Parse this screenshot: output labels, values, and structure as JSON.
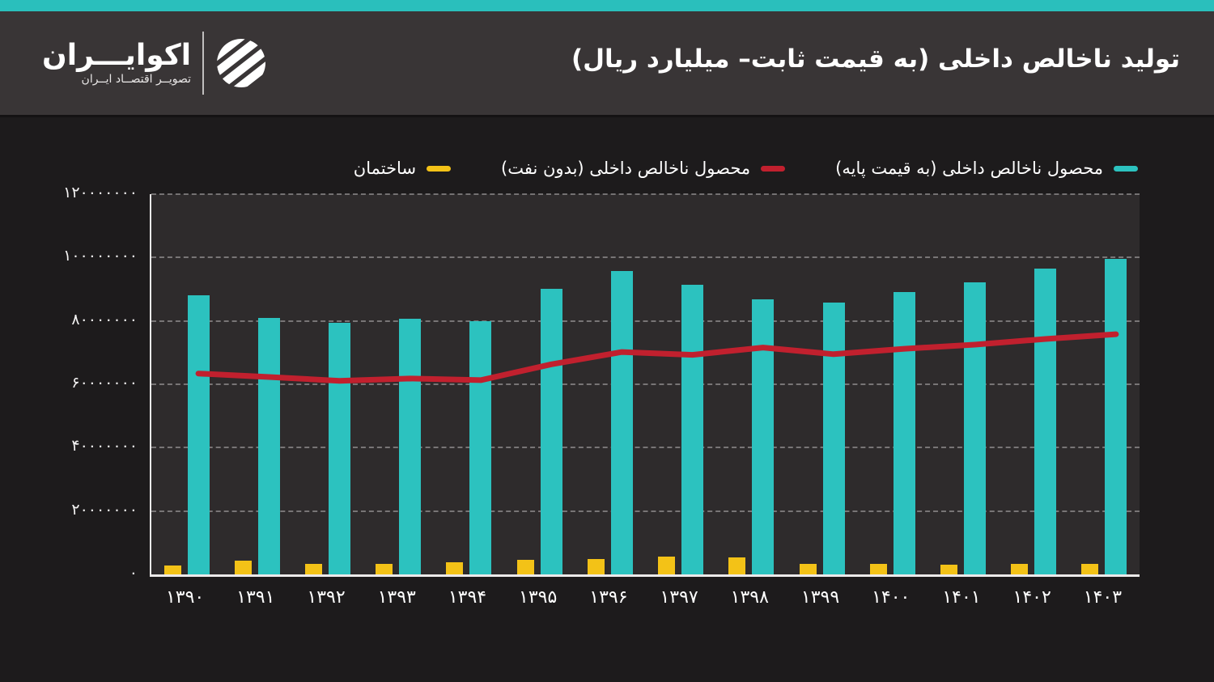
{
  "header": {
    "title": "تولید ناخالص داخلی (به قیمت ثابت– میلیارد ریال)",
    "logo": {
      "name": "اکوایـــران",
      "tagline": "تصویــر اقتصــاد ایــران"
    }
  },
  "colors": {
    "accent_teal": "#2abfbc",
    "bar_teal": "#2cc2bf",
    "line_red": "#c1202e",
    "bar_yellow": "#f3c217",
    "header_bg": "#393536",
    "page_bg": "#1d1b1c",
    "plot_bg": "#2e2b2c"
  },
  "legend": [
    {
      "label": "محصول ناخالص داخلی (به قیمت پایه)",
      "color": "#2cc2bf"
    },
    {
      "label": "محصول ناخالص داخلی (بدون نفت)",
      "color": "#c1202e"
    },
    {
      "label": "ساختمان",
      "color": "#f3c217"
    }
  ],
  "chart_data": {
    "type": "bar",
    "title": "تولید ناخالص داخلی (به قیمت ثابت– میلیارد ریال)",
    "categories": [
      "۱۳۹۰",
      "۱۳۹۱",
      "۱۳۹۲",
      "۱۳۹۳",
      "۱۳۹۴",
      "۱۳۹۵",
      "۱۳۹۶",
      "۱۳۹۷",
      "۱۳۹۸",
      "۱۳۹۹",
      "۱۴۰۰",
      "۱۴۰۱",
      "۱۴۰۲",
      "۱۴۰۳"
    ],
    "series": [
      {
        "name": "محصول ناخالص داخلی (به قیمت پایه)",
        "type": "bar",
        "color": "#2cc2bf",
        "values": [
          88000000,
          81000000,
          79300000,
          80700000,
          79900000,
          90200000,
          95800000,
          91400000,
          86700000,
          85900000,
          89100000,
          92300000,
          96600000,
          99600000
        ]
      },
      {
        "name": "ساختمان",
        "type": "bar",
        "color": "#f3c217",
        "values": [
          2900000,
          4300000,
          3300000,
          3300000,
          3800000,
          4500000,
          4900000,
          5600000,
          5300000,
          3300000,
          3200000,
          3000000,
          3200000,
          3200000
        ]
      },
      {
        "name": "محصول ناخالص داخلی (بدون نفت)",
        "type": "line",
        "color": "#c1202e",
        "values": [
          63400000,
          62300000,
          61100000,
          61800000,
          61300000,
          66300000,
          70200000,
          69300000,
          71600000,
          69500000,
          71200000,
          72500000,
          74300000,
          75800000
        ]
      }
    ],
    "ylim": [
      0,
      120000000
    ],
    "y_ticks": [
      {
        "label": "۱۲۰۰۰۰۰۰۰",
        "value": 120000000
      },
      {
        "label": "۱۰۰۰۰۰۰۰۰",
        "value": 100000000
      },
      {
        "label": "۸۰۰۰۰۰۰۰",
        "value": 80000000
      },
      {
        "label": "۶۰۰۰۰۰۰۰",
        "value": 60000000
      },
      {
        "label": "۴۰۰۰۰۰۰۰",
        "value": 40000000
      },
      {
        "label": "۲۰۰۰۰۰۰۰",
        "value": 20000000
      },
      {
        "label": "۰",
        "value": 0
      }
    ],
    "grid": "horizontal-dashed",
    "legend_position": "top-right"
  }
}
